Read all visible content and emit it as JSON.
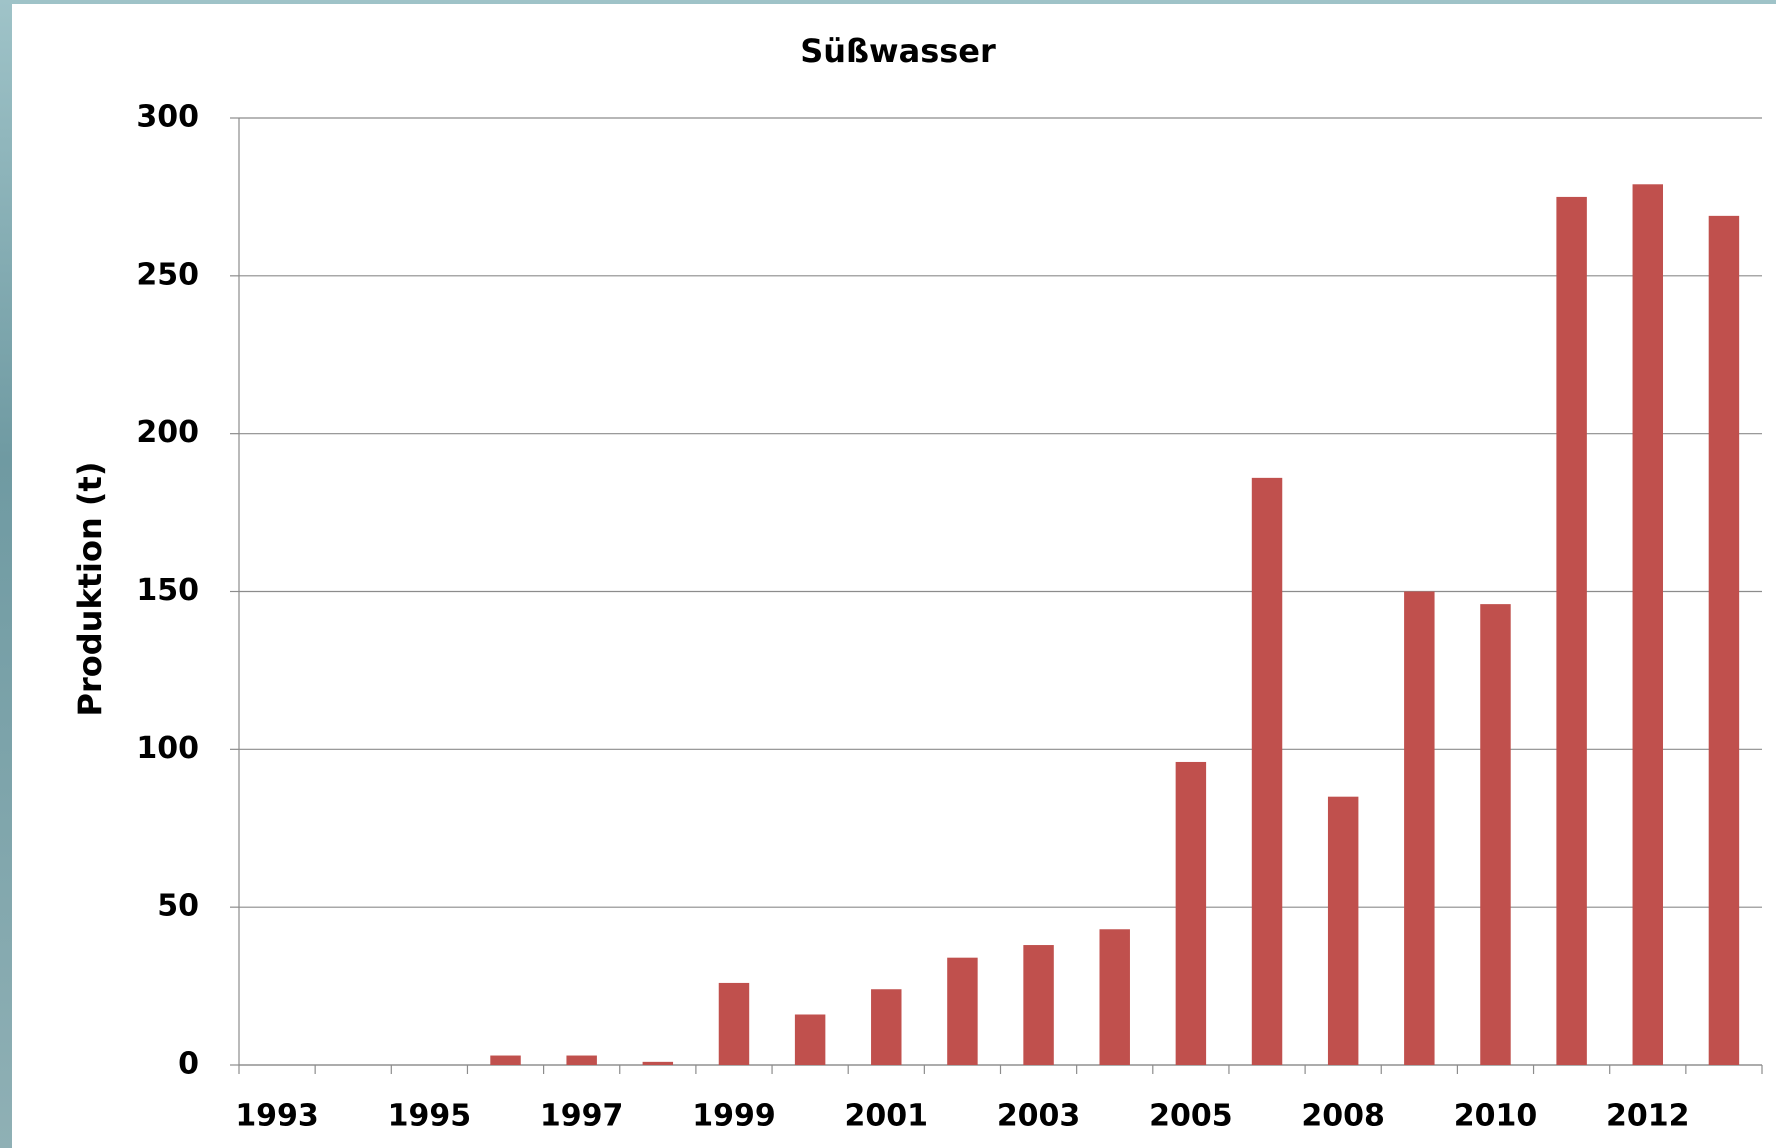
{
  "chart_data": {
    "type": "bar",
    "title": "Süßwasser",
    "y_label": "Produktion (t)",
    "categories": [
      "1993",
      null,
      "1995",
      null,
      "1997",
      null,
      "1999",
      null,
      "2001",
      null,
      "2003",
      null,
      "2005",
      null,
      "2008",
      null,
      "2010",
      null,
      "2012",
      null
    ],
    "values": [
      0,
      0,
      0,
      3,
      3,
      1,
      26,
      16,
      24,
      34,
      38,
      43,
      96,
      186,
      85,
      150,
      146,
      275,
      279,
      269
    ],
    "color": "#c0504d",
    "ylim": [
      0,
      300
    ],
    "yticks": [
      0,
      50,
      100,
      150,
      200,
      250,
      300
    ],
    "grid": true
  }
}
